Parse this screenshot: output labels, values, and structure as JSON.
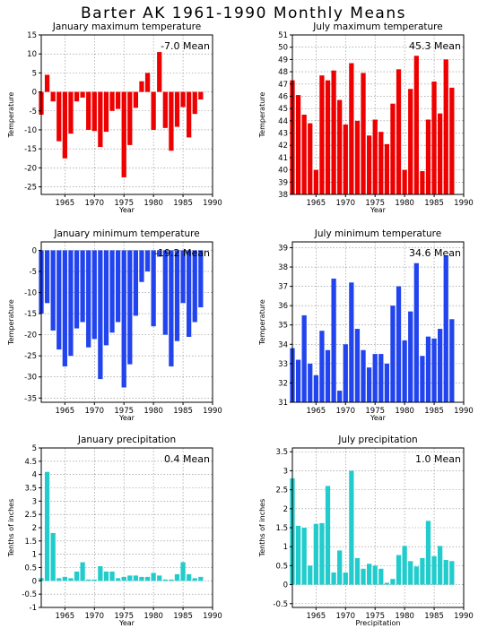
{
  "title": "Barter AK   1961-1990  Monthly Means",
  "chart_data": [
    {
      "type": "bar",
      "title": "January maximum temperature",
      "xlabel": "Year",
      "ylabel": "Temperature",
      "mean_label": "-7.0  Mean",
      "color": "#ee0000",
      "xlim": [
        1961,
        1990
      ],
      "ylim": [
        -27,
        15
      ],
      "yticks": [
        -25,
        -20,
        -15,
        -10,
        -5,
        0,
        5,
        10,
        15
      ],
      "xticks": [
        1965,
        1970,
        1975,
        1980,
        1985,
        1990
      ],
      "grid": true,
      "x": [
        1961,
        1962,
        1963,
        1964,
        1965,
        1966,
        1967,
        1968,
        1969,
        1970,
        1971,
        1972,
        1973,
        1974,
        1975,
        1976,
        1977,
        1978,
        1979,
        1980,
        1981,
        1982,
        1983,
        1984,
        1985,
        1986,
        1987,
        1988
      ],
      "values": [
        -6,
        4.5,
        -2.5,
        -13,
        -17.5,
        -11,
        -2.5,
        -1.5,
        -10,
        -10.3,
        -14.5,
        -10.5,
        -5,
        -4.5,
        -22.5,
        -14,
        -4.2,
        2.8,
        5,
        -10,
        10.5,
        -9.5,
        -15.5,
        -9.2,
        -4,
        -12,
        -5.8,
        -2
      ]
    },
    {
      "type": "bar",
      "title": "July maximum temperature",
      "xlabel": "Year",
      "ylabel": "Temperature",
      "mean_label": "45.3  Mean",
      "color": "#ee0000",
      "xlim": [
        1961,
        1990
      ],
      "ylim": [
        38,
        51
      ],
      "yticks": [
        38,
        39,
        40,
        41,
        42,
        43,
        44,
        45,
        46,
        47,
        48,
        49,
        50,
        51
      ],
      "xticks": [
        1965,
        1970,
        1975,
        1980,
        1985,
        1990
      ],
      "grid": true,
      "x": [
        1961,
        1962,
        1963,
        1964,
        1965,
        1966,
        1967,
        1968,
        1969,
        1970,
        1971,
        1972,
        1973,
        1974,
        1975,
        1976,
        1977,
        1978,
        1979,
        1980,
        1981,
        1982,
        1983,
        1984,
        1985,
        1986,
        1987,
        1988
      ],
      "values": [
        47.3,
        46.1,
        44.5,
        43.8,
        40,
        47.7,
        47.3,
        48.1,
        45.7,
        43.7,
        48.7,
        44,
        47.9,
        42.8,
        44.1,
        43.1,
        42.1,
        45.4,
        48.2,
        40,
        46.6,
        49.3,
        39.9,
        44.1,
        47.2,
        44.6,
        49,
        46.7
      ]
    },
    {
      "type": "bar",
      "title": "January minimum temperature",
      "xlabel": "Year",
      "ylabel": "Temperature",
      "mean_label": "-19.2  Mean",
      "color": "#2244ee",
      "xlim": [
        1961,
        1990
      ],
      "ylim": [
        -36,
        2
      ],
      "yticks": [
        -35,
        -30,
        -25,
        -20,
        -15,
        -10,
        -5,
        0
      ],
      "xticks": [
        1965,
        1970,
        1975,
        1980,
        1985,
        1990
      ],
      "grid": true,
      "x": [
        1961,
        1962,
        1963,
        1964,
        1965,
        1966,
        1967,
        1968,
        1969,
        1970,
        1971,
        1972,
        1973,
        1974,
        1975,
        1976,
        1977,
        1978,
        1979,
        1980,
        1981,
        1982,
        1983,
        1984,
        1985,
        1986,
        1987,
        1988
      ],
      "values": [
        -15,
        -12.5,
        -19,
        -23.5,
        -27.5,
        -25,
        -18.5,
        -17,
        -23,
        -21,
        -30.5,
        -22.5,
        -19.5,
        -17,
        -32.5,
        -27,
        -15.5,
        -7.5,
        -5,
        -18,
        -1.5,
        -20,
        -27.5,
        -21.5,
        -12.5,
        -20.5,
        -17,
        -13.5
      ]
    },
    {
      "type": "bar",
      "title": "July minimum temperature",
      "xlabel": "Year",
      "ylabel": "Temperature",
      "mean_label": "34.6  Mean",
      "color": "#2244ee",
      "xlim": [
        1961,
        1990
      ],
      "ylim": [
        31,
        39.3
      ],
      "yticks": [
        31,
        32,
        33,
        34,
        35,
        36,
        37,
        38,
        39
      ],
      "xticks": [
        1965,
        1970,
        1975,
        1980,
        1985,
        1990
      ],
      "grid": true,
      "x": [
        1961,
        1962,
        1963,
        1964,
        1965,
        1966,
        1967,
        1968,
        1969,
        1970,
        1971,
        1972,
        1973,
        1974,
        1975,
        1976,
        1977,
        1978,
        1979,
        1980,
        1981,
        1982,
        1983,
        1984,
        1985,
        1986,
        1987,
        1988
      ],
      "values": [
        33.8,
        33.2,
        35.5,
        33,
        32.4,
        34.7,
        33.7,
        37.4,
        31.6,
        34,
        37.2,
        34.8,
        33.7,
        32.8,
        33.5,
        33.5,
        33,
        36,
        37,
        34.2,
        35.7,
        38.2,
        33.4,
        34.4,
        34.3,
        34.8,
        38.6,
        35.3
      ]
    },
    {
      "type": "bar",
      "title": "January precipitation",
      "xlabel": "Year",
      "ylabel": "Tenths of inches",
      "mean_label": "0.4  Mean",
      "color": "#22cccc",
      "xlim": [
        1961,
        1990
      ],
      "ylim": [
        -1,
        5
      ],
      "yticks": [
        -1,
        -0.5,
        0,
        0.5,
        1,
        1.5,
        2,
        2.5,
        3,
        3.5,
        4,
        4.5,
        5
      ],
      "xticks": [
        1965,
        1970,
        1975,
        1980,
        1985,
        1990
      ],
      "grid": true,
      "x": [
        1961,
        1962,
        1963,
        1964,
        1965,
        1966,
        1967,
        1968,
        1969,
        1970,
        1971,
        1972,
        1973,
        1974,
        1975,
        1976,
        1977,
        1978,
        1979,
        1980,
        1981,
        1982,
        1983,
        1984,
        1985,
        1986,
        1987,
        1988
      ],
      "values": [
        0.1,
        4.1,
        1.8,
        0.1,
        0.15,
        0.1,
        0.35,
        0.7,
        0.05,
        0.05,
        0.55,
        0.35,
        0.35,
        0.1,
        0.15,
        0.2,
        0.2,
        0.15,
        0.15,
        0.3,
        0.2,
        0.05,
        0.05,
        0.25,
        0.7,
        0.25,
        0.1,
        0.15
      ]
    },
    {
      "type": "bar",
      "title": "July precipitation",
      "xlabel": "Precipitation",
      "ylabel": "Tenths of inches",
      "mean_label": "1.0  Mean",
      "color": "#22cccc",
      "xlim": [
        1961,
        1990
      ],
      "ylim": [
        -0.6,
        3.6
      ],
      "yticks": [
        -0.5,
        0,
        0.5,
        1,
        1.5,
        2,
        2.5,
        3,
        3.5
      ],
      "xticks": [
        1965,
        1970,
        1975,
        1980,
        1985,
        1990
      ],
      "grid": true,
      "x": [
        1961,
        1962,
        1963,
        1964,
        1965,
        1966,
        1967,
        1968,
        1969,
        1970,
        1971,
        1972,
        1973,
        1974,
        1975,
        1976,
        1977,
        1978,
        1979,
        1980,
        1981,
        1982,
        1983,
        1984,
        1985,
        1986,
        1987,
        1988
      ],
      "values": [
        2.8,
        1.55,
        1.5,
        0.5,
        1.6,
        1.62,
        2.6,
        0.32,
        0.9,
        0.32,
        3,
        0.7,
        0.42,
        0.55,
        0.5,
        0.42,
        0.05,
        0.15,
        0.78,
        1.02,
        0.62,
        0.48,
        0.7,
        1.68,
        0.75,
        1.02,
        0.65,
        0.62
      ]
    }
  ]
}
